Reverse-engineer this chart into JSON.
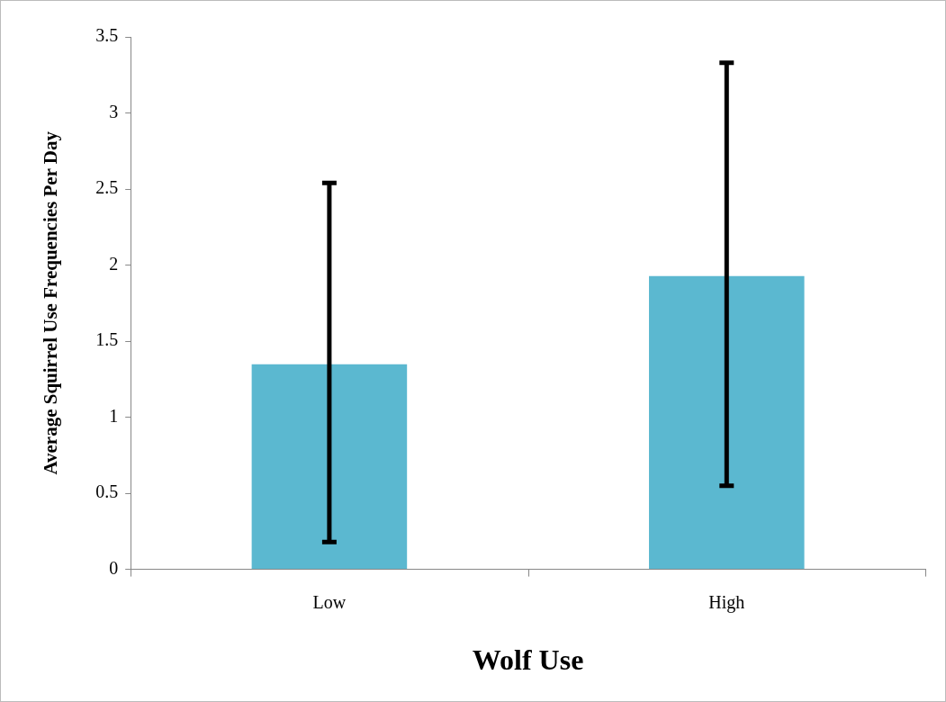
{
  "chart_data": {
    "type": "bar",
    "xlabel": "Wolf Use",
    "ylabel": "Average Squirrel Use Frequencies Per Day",
    "categories": [
      "Low",
      "High"
    ],
    "values": [
      1.36,
      1.94
    ],
    "errors": [
      1.18,
      1.39
    ],
    "color": "#5bb8d0",
    "ylim": [
      0,
      3.5
    ],
    "yticks": [
      0,
      0.5,
      1,
      1.5,
      2,
      2.5,
      3,
      3.5
    ],
    "grid": false,
    "legend": false
  }
}
